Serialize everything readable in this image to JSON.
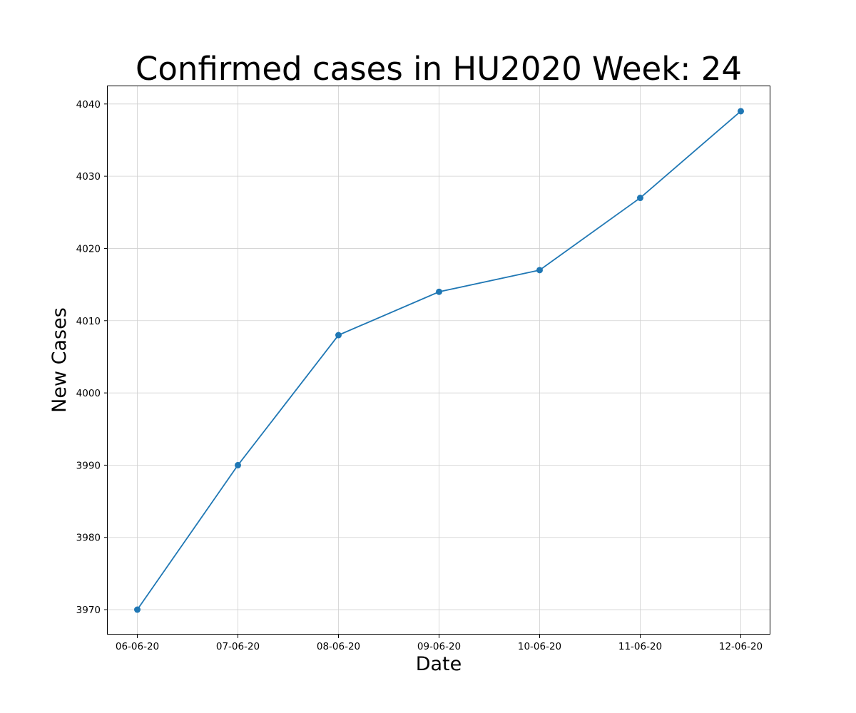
{
  "chart_data": {
    "type": "line",
    "title": "Confirmed cases in HU2020 Week: 24",
    "xlabel": "Date",
    "ylabel": "New Cases",
    "categories": [
      "06-06-20",
      "07-06-20",
      "08-06-20",
      "09-06-20",
      "10-06-20",
      "11-06-20",
      "12-06-20"
    ],
    "series": [
      {
        "values": [
          3970,
          3990,
          4008,
          4014,
          4017,
          4027,
          4039
        ]
      }
    ],
    "ylim": [
      3966.55,
      4042.45
    ],
    "yticks": [
      3970,
      3980,
      3990,
      4000,
      4010,
      4020,
      4030,
      4040
    ],
    "grid": true,
    "legend": "none",
    "markers": true,
    "colors": {
      "line": "#1f77b4",
      "grid": "#d0d0d0",
      "axes": "#000000"
    }
  }
}
